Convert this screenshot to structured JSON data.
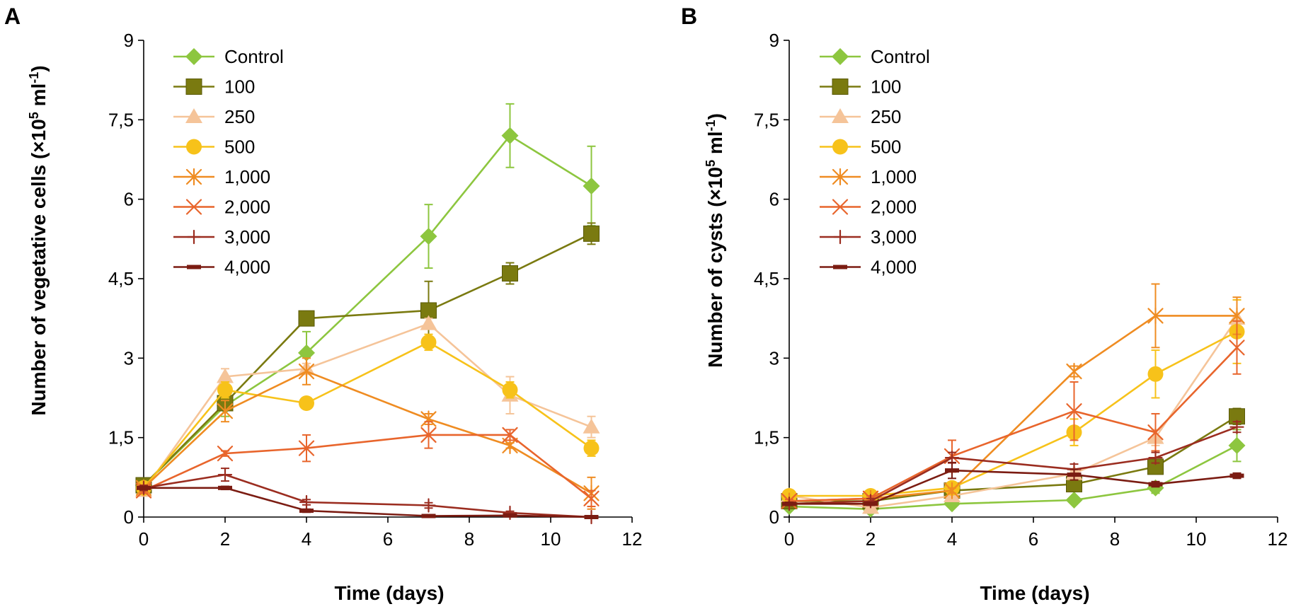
{
  "chart_data": [
    {
      "panel_label": "A",
      "type": "line",
      "xlabel": "Time (days)",
      "ylabel_main": "Number of vegetative cells (×10",
      "ylabel_sup": "5",
      "ylabel_unit": " ml",
      "ylabel_unit_sup": "-1",
      "ylabel_close": ")",
      "xlim": [
        0,
        12
      ],
      "ylim": [
        0,
        9
      ],
      "xticks": [
        0,
        2,
        4,
        6,
        8,
        10,
        12
      ],
      "yticks": [
        0,
        1.5,
        3,
        4.5,
        6,
        7.5,
        9
      ],
      "xtick_labels": [
        "0",
        "2",
        "4",
        "6",
        "8",
        "10",
        "12"
      ],
      "ytick_labels": [
        "0",
        "1,5",
        "3",
        "4,5",
        "6",
        "7,5",
        "9"
      ],
      "legend_position": "top-left",
      "x": [
        0,
        2,
        4,
        7,
        9,
        11
      ],
      "series": [
        {
          "name": "Control",
          "color": "#8dc63f",
          "marker": "diamond",
          "values": [
            0.6,
            2.1,
            3.1,
            5.3,
            7.2,
            6.25
          ],
          "errors": [
            0.05,
            0.2,
            0.4,
            0.6,
            0.6,
            0.75
          ]
        },
        {
          "name": "100",
          "color": "#7a7a10",
          "marker": "square",
          "values": [
            0.6,
            2.15,
            3.75,
            3.9,
            4.6,
            5.35
          ],
          "errors": [
            0.05,
            0.1,
            0.1,
            0.55,
            0.2,
            0.2
          ]
        },
        {
          "name": "250",
          "color": "#f5c499",
          "marker": "triangle",
          "values": [
            0.5,
            2.65,
            2.8,
            3.65,
            2.3,
            1.7
          ],
          "errors": [
            0.05,
            0.15,
            0.1,
            0.1,
            0.35,
            0.2
          ]
        },
        {
          "name": "500",
          "color": "#f7c21a",
          "marker": "circle",
          "values": [
            0.55,
            2.4,
            2.15,
            3.3,
            2.4,
            1.3
          ],
          "errors": [
            0.05,
            0.15,
            0.1,
            0.15,
            0.15,
            0.15
          ]
        },
        {
          "name": "1,000",
          "color": "#ef8c22",
          "marker": "asterisk",
          "values": [
            0.55,
            2.0,
            2.75,
            1.85,
            1.35,
            0.45
          ],
          "errors": [
            0.05,
            0.2,
            0.25,
            0.1,
            0.05,
            0.3
          ]
        },
        {
          "name": "2,000",
          "color": "#e8652c",
          "marker": "x",
          "values": [
            0.5,
            1.2,
            1.3,
            1.55,
            1.55,
            0.35
          ],
          "errors": [
            0.05,
            0.05,
            0.25,
            0.25,
            0.1,
            0.15
          ]
        },
        {
          "name": "3,000",
          "color": "#9b2d20",
          "marker": "plus",
          "values": [
            0.55,
            0.8,
            0.28,
            0.22,
            0.08,
            0.0
          ],
          "errors": [
            0.05,
            0.12,
            0.05,
            0.05,
            0.03,
            0.02
          ]
        },
        {
          "name": "4,000",
          "color": "#7b1c12",
          "marker": "dash",
          "values": [
            0.55,
            0.55,
            0.12,
            0.02,
            0.03,
            0.0
          ],
          "errors": [
            0.03,
            0.03,
            0.03,
            0.01,
            0.01,
            0.0
          ]
        }
      ]
    },
    {
      "panel_label": "B",
      "type": "line",
      "xlabel": "Time (days)",
      "ylabel_main": "Number of cysts (×10",
      "ylabel_sup": "5",
      "ylabel_unit": " ml",
      "ylabel_unit_sup": "-1",
      "ylabel_close": ")",
      "xlim": [
        0,
        12
      ],
      "ylim": [
        0,
        9
      ],
      "xticks": [
        0,
        2,
        4,
        6,
        8,
        10,
        12
      ],
      "yticks": [
        0,
        1.5,
        3,
        4.5,
        6,
        7.5,
        9
      ],
      "xtick_labels": [
        "0",
        "2",
        "4",
        "6",
        "8",
        "10",
        "12"
      ],
      "ytick_labels": [
        "0",
        "1,5",
        "3",
        "4,5",
        "6",
        "7,5",
        "9"
      ],
      "legend_position": "top-left",
      "x": [
        0,
        2,
        4,
        7,
        9,
        11
      ],
      "series": [
        {
          "name": "Control",
          "color": "#8dc63f",
          "marker": "diamond",
          "values": [
            0.2,
            0.15,
            0.25,
            0.32,
            0.55,
            1.35
          ],
          "errors": [
            0.03,
            0.03,
            0.03,
            0.03,
            0.1,
            0.3
          ]
        },
        {
          "name": "100",
          "color": "#7a7a10",
          "marker": "square",
          "values": [
            0.3,
            0.3,
            0.5,
            0.62,
            0.95,
            1.9
          ],
          "errors": [
            0.03,
            0.03,
            0.05,
            0.05,
            0.1,
            0.15
          ]
        },
        {
          "name": "250",
          "color": "#f5c499",
          "marker": "triangle",
          "values": [
            0.4,
            0.18,
            0.4,
            0.82,
            1.5,
            3.75
          ],
          "errors": [
            0.03,
            0.03,
            0.05,
            0.05,
            0.15,
            0.35
          ]
        },
        {
          "name": "500",
          "color": "#f7c21a",
          "marker": "circle",
          "values": [
            0.4,
            0.4,
            0.55,
            1.6,
            2.7,
            3.5
          ],
          "errors": [
            0.03,
            0.03,
            0.05,
            0.25,
            0.45,
            0.6
          ]
        },
        {
          "name": "1,000",
          "color": "#ef8c22",
          "marker": "asterisk",
          "values": [
            0.3,
            0.35,
            0.5,
            2.75,
            3.8,
            3.8
          ],
          "errors": [
            0.03,
            0.05,
            0.05,
            0.1,
            0.6,
            0.35
          ]
        },
        {
          "name": "2,000",
          "color": "#e8652c",
          "marker": "x",
          "values": [
            0.3,
            0.35,
            1.15,
            2.0,
            1.6,
            3.2
          ],
          "errors": [
            0.03,
            0.05,
            0.3,
            0.55,
            0.35,
            0.5
          ]
        },
        {
          "name": "3,000",
          "color": "#9b2d20",
          "marker": "plus",
          "values": [
            0.25,
            0.3,
            1.12,
            0.9,
            1.12,
            1.7
          ],
          "errors": [
            0.03,
            0.05,
            0.1,
            0.1,
            0.1,
            0.1
          ]
        },
        {
          "name": "4,000",
          "color": "#7b1c12",
          "marker": "dash",
          "values": [
            0.25,
            0.25,
            0.88,
            0.8,
            0.62,
            0.78
          ],
          "errors": [
            0.03,
            0.03,
            0.15,
            0.1,
            0.05,
            0.05
          ]
        }
      ]
    }
  ]
}
